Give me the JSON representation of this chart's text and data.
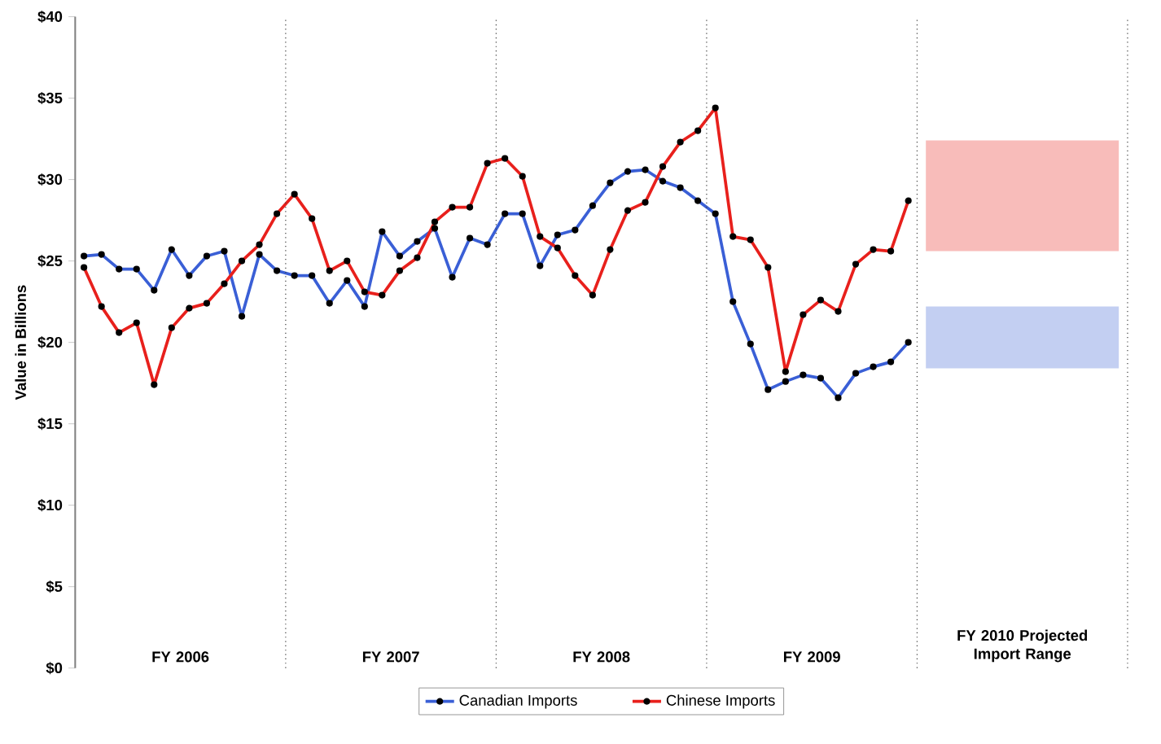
{
  "chart_data": {
    "type": "line",
    "ylabel": "Value in Billions",
    "categories": [
      null,
      null,
      null,
      null,
      null,
      null,
      null,
      null,
      null,
      null,
      null,
      null,
      null,
      null,
      null,
      null,
      null,
      null,
      null,
      null,
      null,
      null,
      null,
      null,
      null,
      null,
      null,
      null,
      null,
      null,
      null,
      null,
      null,
      null,
      null,
      null,
      null,
      null,
      null,
      null,
      null,
      null,
      null,
      null,
      null,
      null,
      null,
      null,
      null,
      null,
      null,
      null,
      null,
      null,
      null,
      null,
      null,
      null,
      null,
      null
    ],
    "ylim": [
      0,
      40
    ],
    "yticks": [
      {
        "value": 0,
        "label": "$0"
      },
      {
        "value": 5,
        "label": "$5"
      },
      {
        "value": 10,
        "label": "$10"
      },
      {
        "value": 15,
        "label": "$15"
      },
      {
        "value": 20,
        "label": "$20"
      },
      {
        "value": 25,
        "label": "$25"
      },
      {
        "value": 30,
        "label": "$30"
      },
      {
        "value": 35,
        "label": "$35"
      },
      {
        "value": 40,
        "label": "$40"
      }
    ],
    "tick_labels": "y",
    "grid": false,
    "legend": "bottom",
    "marker": "circle",
    "series": [
      {
        "name": "Canadian Imports",
        "color": "#3a5fd6",
        "values": [
          25.3,
          25.4,
          24.5,
          24.5,
          23.2,
          25.7,
          24.1,
          25.3,
          25.6,
          21.6,
          25.4,
          24.4,
          24.1,
          24.1,
          22.4,
          23.8,
          22.2,
          26.8,
          25.3,
          26.2,
          27.0,
          24.0,
          26.4,
          26.0,
          27.9,
          27.9,
          24.7,
          26.6,
          26.9,
          28.4,
          29.8,
          30.5,
          30.6,
          29.9,
          29.5,
          28.7,
          27.9,
          22.5,
          19.9,
          17.1,
          17.6,
          18.0,
          17.8,
          16.6,
          18.1,
          18.5,
          18.8,
          20.0,
          null,
          null,
          null,
          null,
          null,
          null,
          null,
          null,
          null,
          null,
          null,
          null
        ],
        "lower": [
          null,
          null,
          null,
          null,
          null,
          null,
          null,
          null,
          null,
          null,
          null,
          null,
          null,
          null,
          null,
          null,
          null,
          null,
          null,
          null,
          null,
          null,
          null,
          null,
          null,
          null,
          null,
          null,
          null,
          null,
          null,
          null,
          null,
          null,
          null,
          null,
          null,
          null,
          null,
          null,
          null,
          null,
          null,
          null,
          null,
          null,
          null,
          null,
          18.4,
          18.4,
          18.4,
          18.4,
          18.4,
          18.4,
          18.4,
          18.4,
          18.4,
          18.4,
          18.4,
          18.4
        ],
        "upper": [
          null,
          null,
          null,
          null,
          null,
          null,
          null,
          null,
          null,
          null,
          null,
          null,
          null,
          null,
          null,
          null,
          null,
          null,
          null,
          null,
          null,
          null,
          null,
          null,
          null,
          null,
          null,
          null,
          null,
          null,
          null,
          null,
          null,
          null,
          null,
          null,
          null,
          null,
          null,
          null,
          null,
          null,
          null,
          null,
          null,
          null,
          null,
          null,
          22.2,
          22.2,
          22.2,
          22.2,
          22.2,
          22.2,
          22.2,
          22.2,
          22.2,
          22.2,
          22.2,
          22.2
        ]
      },
      {
        "name": "Chinese Imports",
        "color": "#e8201c",
        "values": [
          24.6,
          22.2,
          20.6,
          21.2,
          17.4,
          20.9,
          22.1,
          22.4,
          23.6,
          25.0,
          26.0,
          27.9,
          29.1,
          27.6,
          24.4,
          25.0,
          23.1,
          22.9,
          24.4,
          25.2,
          27.4,
          28.3,
          28.3,
          31.0,
          31.3,
          30.2,
          26.5,
          25.8,
          24.1,
          22.9,
          25.7,
          28.1,
          28.6,
          30.8,
          32.3,
          33.0,
          34.4,
          26.5,
          26.3,
          24.6,
          18.2,
          21.7,
          22.6,
          21.9,
          24.8,
          25.7,
          25.6,
          28.7,
          null,
          null,
          null,
          null,
          null,
          null,
          null,
          null,
          null,
          null,
          null,
          null
        ],
        "lower": [
          null,
          null,
          null,
          null,
          null,
          null,
          null,
          null,
          null,
          null,
          null,
          null,
          null,
          null,
          null,
          null,
          null,
          null,
          null,
          null,
          null,
          null,
          null,
          null,
          null,
          null,
          null,
          null,
          null,
          null,
          null,
          null,
          null,
          null,
          null,
          null,
          null,
          null,
          null,
          null,
          null,
          null,
          null,
          null,
          null,
          null,
          null,
          null,
          25.6,
          25.6,
          25.6,
          25.6,
          25.6,
          25.6,
          25.6,
          25.6,
          25.6,
          25.6,
          25.6,
          25.6
        ],
        "upper": [
          null,
          null,
          null,
          null,
          null,
          null,
          null,
          null,
          null,
          null,
          null,
          null,
          null,
          null,
          null,
          null,
          null,
          null,
          null,
          null,
          null,
          null,
          null,
          null,
          null,
          null,
          null,
          null,
          null,
          null,
          null,
          null,
          null,
          null,
          null,
          null,
          null,
          null,
          null,
          null,
          null,
          null,
          null,
          null,
          null,
          null,
          null,
          null,
          32.4,
          32.4,
          32.4,
          32.4,
          32.4,
          32.4,
          32.4,
          32.4,
          32.4,
          32.4,
          32.4,
          32.4
        ]
      }
    ],
    "annotations": [
      "FY 2006",
      "FY 2007",
      "FY 2008",
      "FY 2009",
      "FY 2010 Projected Import Range"
    ]
  }
}
